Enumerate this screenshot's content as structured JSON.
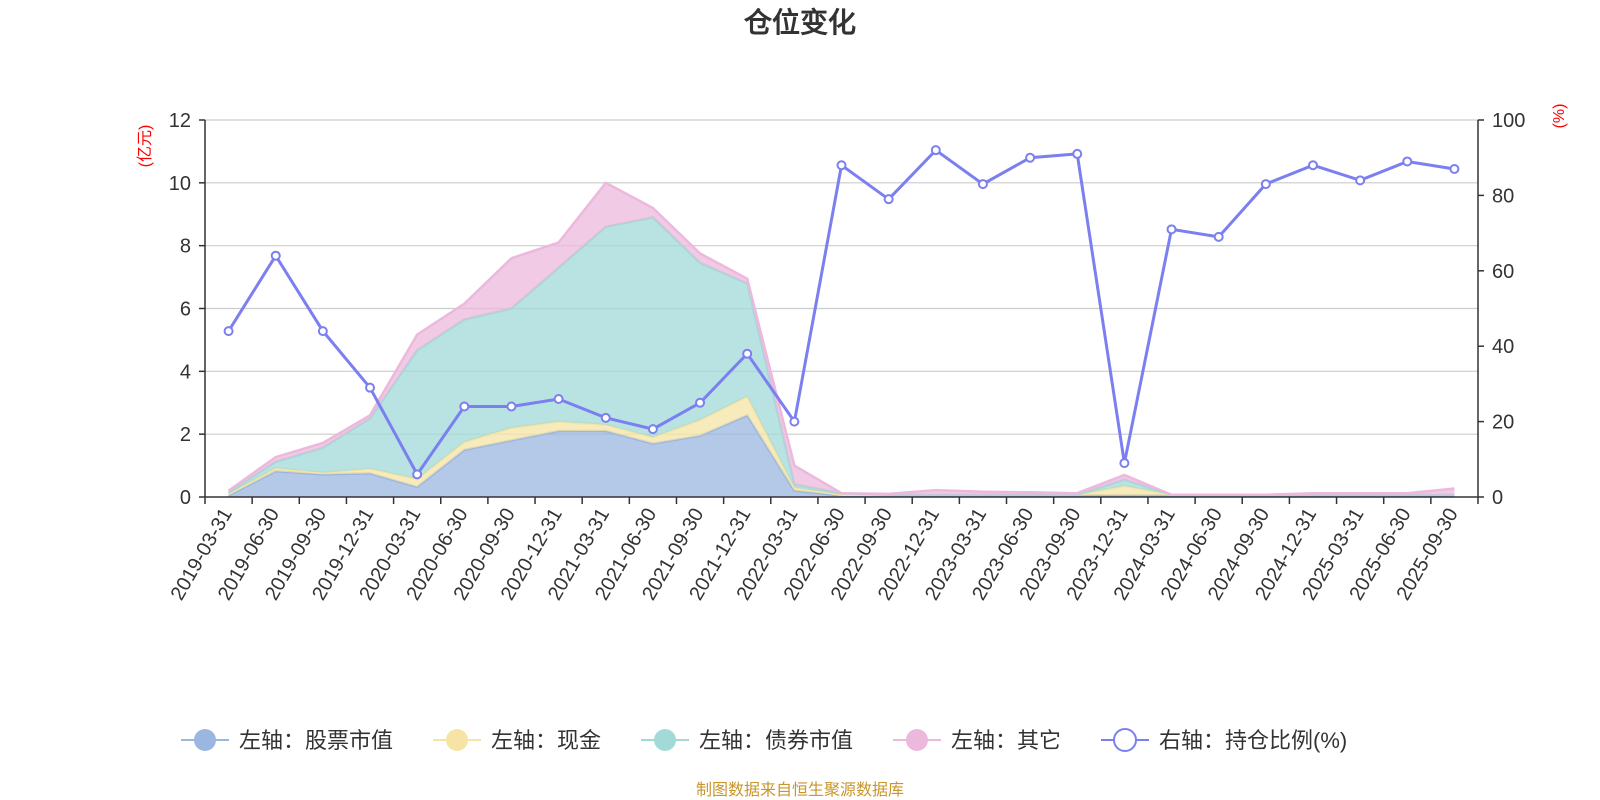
{
  "chart_data": {
    "type": "area",
    "title": "仓位变化",
    "left_axis": {
      "unit": "(亿元)",
      "ylim": [
        0,
        12
      ],
      "ticks": [
        0,
        2,
        4,
        6,
        8,
        10,
        12
      ]
    },
    "right_axis": {
      "unit": "(%)",
      "ylim": [
        0,
        100
      ],
      "ticks": [
        0,
        20,
        40,
        60,
        80,
        100
      ]
    },
    "categories": [
      "2019-03-31",
      "2019-06-30",
      "2019-09-30",
      "2019-12-31",
      "2020-03-31",
      "2020-06-30",
      "2020-09-30",
      "2020-12-31",
      "2021-03-31",
      "2021-06-30",
      "2021-09-30",
      "2021-12-31",
      "2022-03-31",
      "2022-06-30",
      "2022-09-30",
      "2022-12-31",
      "2023-03-31",
      "2023-06-30",
      "2023-09-30",
      "2023-12-31",
      "2024-03-31",
      "2024-06-30",
      "2024-09-30",
      "2024-12-31",
      "2025-03-31",
      "2025-06-30",
      "2025-09-30"
    ],
    "stacked_series": [
      {
        "name": "左轴：股票市值",
        "color": "#9bb6e0",
        "values": [
          0.05,
          0.82,
          0.72,
          0.75,
          0.32,
          1.5,
          1.8,
          2.1,
          2.1,
          1.7,
          1.95,
          2.6,
          0.2,
          0.05,
          0.05,
          0.05,
          0.05,
          0.05,
          0.05,
          0.05,
          0.05,
          0.05,
          0.05,
          0.05,
          0.05,
          0.05,
          0.05
        ]
      },
      {
        "name": "左轴：现金",
        "color": "#f6e4a4",
        "values": [
          0.05,
          0.1,
          0.05,
          0.15,
          0.25,
          0.25,
          0.4,
          0.3,
          0.2,
          0.2,
          0.5,
          0.6,
          0.1,
          0.02,
          0.02,
          0.02,
          0.02,
          0.02,
          0.02,
          0.3,
          0.02,
          0.02,
          0.02,
          0.02,
          0.02,
          0.02,
          0.02
        ]
      },
      {
        "name": "左轴：债券市值",
        "color": "#a2dad8",
        "values": [
          0.05,
          0.2,
          0.8,
          1.6,
          4.1,
          3.9,
          3.8,
          4.9,
          6.3,
          7.0,
          5.0,
          3.6,
          0.1,
          0.05,
          0.0,
          0.0,
          0.0,
          0.0,
          0.0,
          0.2,
          0.0,
          0.0,
          0.0,
          0.0,
          0.0,
          0.0,
          0.0
        ]
      },
      {
        "name": "左轴：其它",
        "color": "#ecb8dc",
        "values": [
          0.05,
          0.15,
          0.15,
          0.1,
          0.5,
          0.5,
          1.6,
          0.8,
          1.4,
          0.3,
          0.3,
          0.15,
          0.6,
          0.0,
          0.03,
          0.15,
          0.1,
          0.08,
          0.05,
          0.15,
          0.0,
          0.0,
          0.0,
          0.05,
          0.05,
          0.05,
          0.2
        ]
      }
    ],
    "line_series": {
      "name": "右轴：持仓比例(%)",
      "color": "#7b7ff0",
      "values": [
        44,
        64,
        44,
        29,
        6,
        24,
        24,
        26,
        21,
        18,
        25,
        38,
        20,
        88,
        79,
        92,
        83,
        90,
        91,
        9,
        71,
        69,
        83,
        88,
        84,
        89,
        87
      ]
    },
    "legend_position": "bottom",
    "grid": true
  },
  "source_note": "制图数据来自恒生聚源数据库"
}
